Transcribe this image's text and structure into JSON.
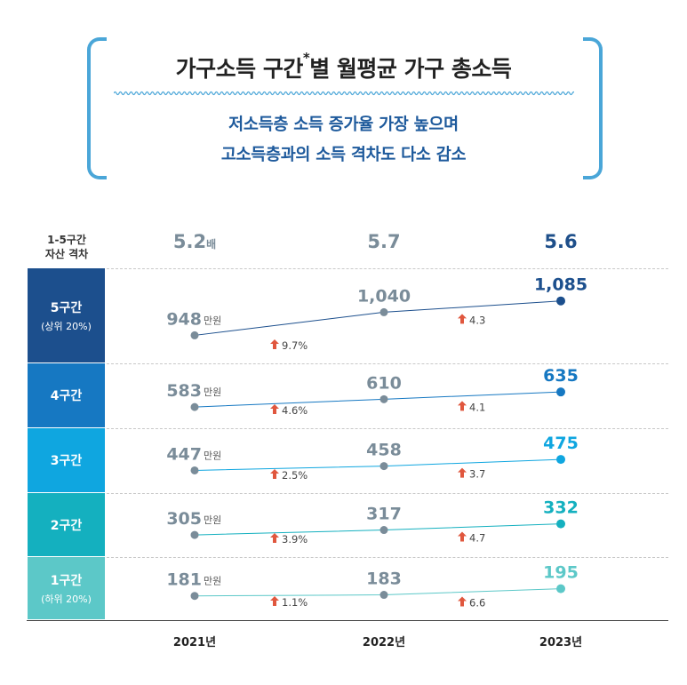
{
  "header": {
    "title_main": "가구소득 구간",
    "title_mark": "*",
    "title_tail": "별 월평균 가구 총소득",
    "subtitle_line1": "저소득층 소득 증가율 가장 높으며",
    "subtitle_line2": "고소득층과의 소득 격차도 다소 감소"
  },
  "gap_label_line1": "1-5구간",
  "gap_label_line2": "자산 격차",
  "unit_label": "만원",
  "chart_data": {
    "type": "line",
    "x": [
      "2021년",
      "2022년",
      "2023년"
    ],
    "gap_values": [
      {
        "value": "5.2",
        "unit": "배"
      },
      {
        "value": "5.7",
        "unit": ""
      },
      {
        "value": "5.6",
        "unit": ""
      }
    ],
    "series": [
      {
        "name": "5구간",
        "sublabel": "(상위 20%)",
        "values": [
          948,
          1040,
          1085
        ],
        "value_labels": [
          "948",
          "1,040",
          "1,085"
        ],
        "growth": [
          "9.7%",
          "4.3"
        ],
        "color": "#1c4f8d",
        "line_color": "#1c4f8d"
      },
      {
        "name": "4구간",
        "sublabel": "",
        "values": [
          583,
          610,
          635
        ],
        "value_labels": [
          "583",
          "610",
          "635"
        ],
        "growth": [
          "4.6%",
          "4.1"
        ],
        "color": "#1678c2",
        "line_color": "#1678c2"
      },
      {
        "name": "3구간",
        "sublabel": "",
        "values": [
          447,
          458,
          475
        ],
        "value_labels": [
          "447",
          "458",
          "475"
        ],
        "growth": [
          "2.5%",
          "3.7"
        ],
        "color": "#0fa6e0",
        "line_color": "#0fa6e0"
      },
      {
        "name": "2구간",
        "sublabel": "",
        "values": [
          305,
          317,
          332
        ],
        "value_labels": [
          "305",
          "317",
          "332"
        ],
        "growth": [
          "3.9%",
          "4.7"
        ],
        "color": "#14b0bf",
        "line_color": "#14b0bf"
      },
      {
        "name": "1구간",
        "sublabel": "(하위 20%)",
        "values": [
          181,
          183,
          195
        ],
        "value_labels": [
          "181",
          "183",
          "195"
        ],
        "growth": [
          "1.1%",
          "6.6"
        ],
        "color": "#5cc8c8",
        "line_color": "#5cc8c8"
      }
    ],
    "point_color": "#7a8c99",
    "label_color": "#7a8c99",
    "arrow_color": "#e0573e"
  }
}
